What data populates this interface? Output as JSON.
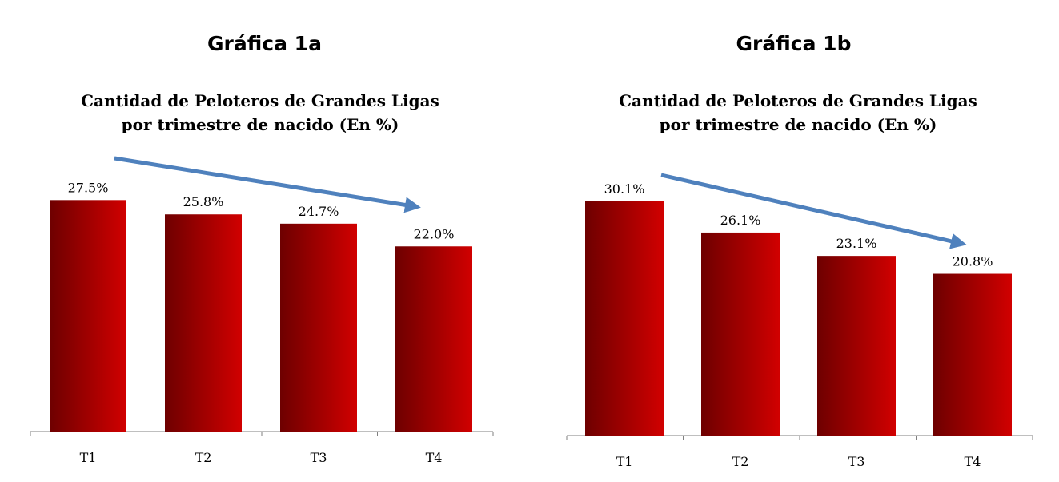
{
  "colors": {
    "bar_dark": "#6e0000",
    "bar_light": "#d10000",
    "arrow": "#4f81bd",
    "axis": "#7f7f7f"
  },
  "chart_data": [
    {
      "type": "bar",
      "heading": "Gráfica 1a",
      "title_lines": [
        "Cantidad de Peloteros de Grandes Ligas",
        "por trimestre de nacido (En %)"
      ],
      "categories": [
        "T1",
        "T2",
        "T3",
        "T4"
      ],
      "values": [
        27.5,
        25.8,
        24.7,
        22.0
      ],
      "value_labels": [
        "27.5%",
        "25.8%",
        "24.7%",
        "22.0%"
      ],
      "ylim": [
        0,
        30
      ],
      "grid": false,
      "trend_arrow": "decreasing"
    },
    {
      "type": "bar",
      "heading": "Gráfica 1b",
      "title_lines": [
        "Cantidad de Peloteros de Grandes Ligas",
        "por trimestre de nacido (En %)"
      ],
      "categories": [
        "T1",
        "T2",
        "T3",
        "T4"
      ],
      "values": [
        30.1,
        26.1,
        23.1,
        20.8
      ],
      "value_labels": [
        "30.1%",
        "26.1%",
        "23.1%",
        "20.8%"
      ],
      "ylim": [
        0,
        30.1
      ],
      "grid": false,
      "trend_arrow": "decreasing"
    }
  ]
}
